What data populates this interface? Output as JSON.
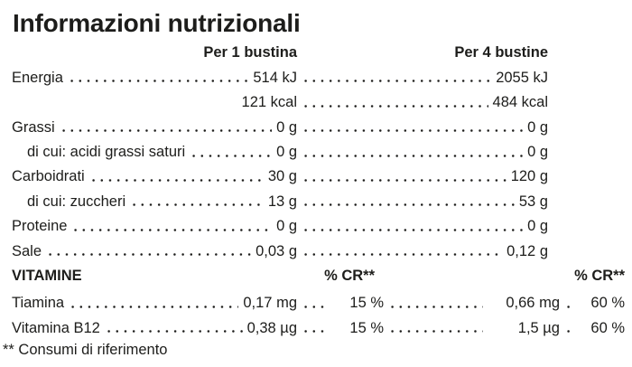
{
  "title": "Informazioni nutrizionali",
  "columns": {
    "col1": "Per 1 bustina",
    "col2": "Per 4 bustine"
  },
  "rows": [
    {
      "label": "Energia",
      "v1": "514 kJ",
      "v2": "2055 kJ"
    },
    {
      "label": "",
      "v1": "121 kcal",
      "v2": "484 kcal"
    },
    {
      "label": "Grassi",
      "v1": "0 g",
      "v2": "0 g"
    },
    {
      "label": "di cui: acidi grassi saturi",
      "v1": "0 g",
      "v2": "0 g"
    },
    {
      "label": "Carboidrati",
      "v1": "30 g",
      "v2": "120 g"
    },
    {
      "label": "di cui: zuccheri",
      "v1": "13 g",
      "v2": "53 g"
    },
    {
      "label": "Proteine",
      "v1": "0 g",
      "v2": "0 g"
    },
    {
      "label": "Sale",
      "v1": "0,03 g",
      "v2": "0,12 g"
    }
  ],
  "vitamins": {
    "section_label": "VITAMINE",
    "cr_header": "% CR**",
    "rows": [
      {
        "label": "Tiamina",
        "v1": "0,17 mg",
        "p1": "15 %",
        "v2": "0,66 mg",
        "p2": "60 %"
      },
      {
        "label": "Vitamina B12",
        "v1": "0,38 µg",
        "p1": "15 %",
        "v2": "1,5 µg",
        "p2": "60 %"
      }
    ]
  },
  "footnote": "** Consumi di riferimento",
  "colors": {
    "text": "#1d1d1b",
    "background": "#ffffff"
  }
}
